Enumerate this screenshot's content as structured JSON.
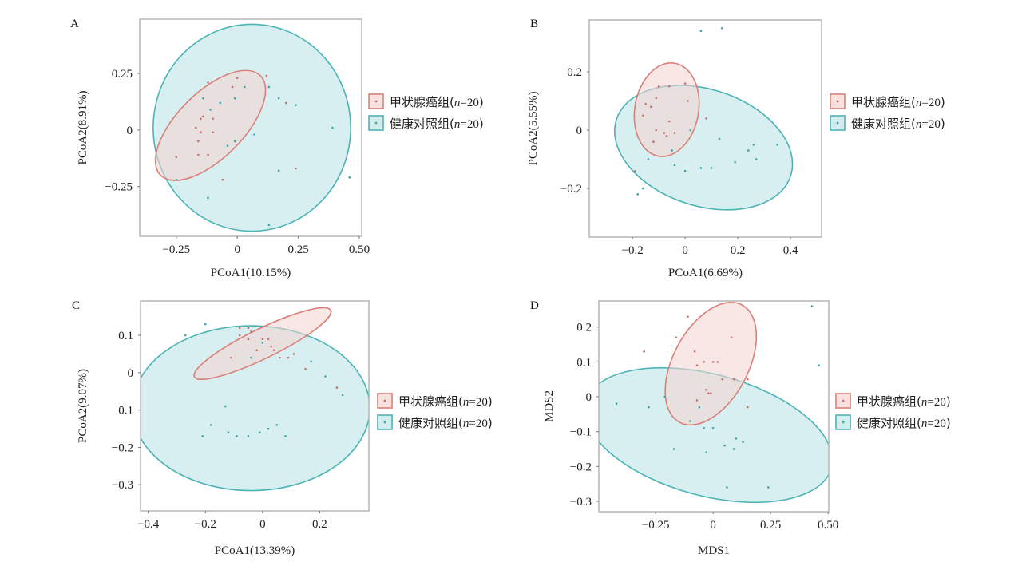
{
  "legend": {
    "groups": [
      {
        "name": "甲状腺癌组",
        "n_label": "n",
        "n_value": "=20",
        "open": "(",
        "close": ")",
        "color_key": "cancer"
      },
      {
        "name": "健康对照组",
        "n_label": "n",
        "n_value": "=20",
        "open": "(",
        "close": ")",
        "color_key": "control"
      }
    ]
  },
  "colors": {
    "cancer_stroke": "#d9807a",
    "cancer_fill": "#f4d3d1",
    "cancer_point": "#c9706a",
    "control_stroke": "#4db3b5",
    "control_fill": "#b7e1e4",
    "control_point": "#3aa6a8",
    "frame": "#b5b5b5"
  },
  "chart_data": [
    {
      "panel": "A",
      "type": "scatter",
      "xlabel": "PCoA1(10.15%)",
      "ylabel": "PCoA2(8.91%)",
      "xlim": [
        -0.4,
        0.51
      ],
      "ylim": [
        -0.47,
        0.49
      ],
      "xticks": [
        -0.25,
        0,
        0.25,
        0.5
      ],
      "xtick_labels": [
        "−0.25",
        "0",
        "0.25",
        "0.50"
      ],
      "yticks": [
        -0.25,
        0,
        0.25
      ],
      "ytick_labels": [
        "−0.25",
        "0",
        "0.25"
      ],
      "ellipses": [
        {
          "group": "control",
          "cx": 0.06,
          "cy": 0.01,
          "rx": 0.42,
          "ry": 0.44,
          "angle": 0
        },
        {
          "group": "cancer",
          "cx": -0.11,
          "cy": 0.02,
          "rx": 0.3,
          "ry": 0.14,
          "angle": 45
        }
      ],
      "series": [
        {
          "group": "cancer",
          "points": [
            [
              -0.25,
              -0.12
            ],
            [
              -0.12,
              0.21
            ],
            [
              -0.02,
              0.19
            ],
            [
              0.0,
              0.23
            ],
            [
              0.12,
              0.24
            ],
            [
              0.2,
              0.12
            ],
            [
              -0.14,
              0.06
            ],
            [
              -0.15,
              0.05
            ],
            [
              -0.1,
              0.05
            ],
            [
              -0.17,
              0.01
            ],
            [
              -0.15,
              -0.01
            ],
            [
              -0.1,
              -0.01
            ],
            [
              -0.16,
              -0.05
            ],
            [
              -0.16,
              -0.11
            ],
            [
              -0.12,
              -0.11
            ],
            [
              -0.06,
              -0.22
            ],
            [
              0.24,
              -0.17
            ]
          ]
        },
        {
          "group": "control",
          "points": [
            [
              0.03,
              0.19
            ],
            [
              0.13,
              0.19
            ],
            [
              -0.14,
              0.14
            ],
            [
              -0.07,
              0.12
            ],
            [
              -0.01,
              0.14
            ],
            [
              0.17,
              0.14
            ],
            [
              0.24,
              0.11
            ],
            [
              -0.11,
              0.09
            ],
            [
              -0.01,
              -0.05
            ],
            [
              0.07,
              -0.02
            ],
            [
              -0.04,
              -0.07
            ],
            [
              0.39,
              0.01
            ],
            [
              0.17,
              -0.18
            ],
            [
              0.46,
              -0.21
            ],
            [
              -0.25,
              -0.22
            ],
            [
              -0.12,
              -0.3
            ],
            [
              0.13,
              -0.42
            ]
          ]
        }
      ]
    },
    {
      "panel": "B",
      "type": "scatter",
      "xlabel": "PCoA1(6.69%)",
      "ylabel": "PCoA2(5.55%)",
      "xlim": [
        -0.364,
        0.518
      ],
      "ylim": [
        -0.367,
        0.378
      ],
      "xticks": [
        -0.2,
        0,
        0.2,
        0.4
      ],
      "xtick_labels": [
        "−0.2",
        "0",
        "0.2",
        "0.4"
      ],
      "yticks": [
        -0.2,
        0,
        0.2
      ],
      "ytick_labels": [
        "−0.2",
        "0",
        "0.2"
      ],
      "ellipses": [
        {
          "group": "control",
          "cx": 0.07,
          "cy": -0.06,
          "rx": 0.33,
          "ry": 0.21,
          "angle": -18
        },
        {
          "group": "cancer",
          "cx": -0.07,
          "cy": 0.07,
          "rx": 0.115,
          "ry": 0.17,
          "angle": -10
        }
      ],
      "series": [
        {
          "group": "cancer",
          "points": [
            [
              -0.1,
              0.15
            ],
            [
              -0.06,
              0.15
            ],
            [
              0.0,
              0.16
            ],
            [
              -0.11,
              0.11
            ],
            [
              0.01,
              0.1
            ],
            [
              -0.15,
              0.09
            ],
            [
              -0.13,
              0.08
            ],
            [
              -0.16,
              0.05
            ],
            [
              0.08,
              0.04
            ],
            [
              -0.06,
              0.03
            ],
            [
              -0.11,
              0.0
            ],
            [
              -0.08,
              -0.01
            ],
            [
              -0.04,
              -0.01
            ],
            [
              -0.07,
              -0.02
            ],
            [
              -0.12,
              -0.04
            ],
            [
              -0.19,
              -0.14
            ]
          ]
        },
        {
          "group": "control",
          "points": [
            [
              0.06,
              0.34
            ],
            [
              0.14,
              0.35
            ],
            [
              0.02,
              0.0
            ],
            [
              -0.05,
              -0.07
            ],
            [
              -0.14,
              -0.1
            ],
            [
              -0.04,
              -0.12
            ],
            [
              0.13,
              -0.03
            ],
            [
              0.24,
              -0.07
            ],
            [
              0.26,
              -0.05
            ],
            [
              0.35,
              -0.05
            ],
            [
              0.27,
              -0.1
            ],
            [
              0.19,
              -0.11
            ],
            [
              0.0,
              -0.14
            ],
            [
              0.06,
              -0.13
            ],
            [
              0.1,
              -0.13
            ],
            [
              -0.16,
              -0.2
            ],
            [
              -0.18,
              -0.22
            ]
          ]
        }
      ]
    },
    {
      "panel": "C",
      "type": "scatter",
      "xlabel": "PCoA1(13.39%)",
      "ylabel": "PCoA2(9.07%)",
      "xlim": [
        -0.427,
        0.372
      ],
      "ylim": [
        -0.37,
        0.192
      ],
      "xticks": [
        -0.4,
        -0.2,
        0,
        0.2
      ],
      "xtick_labels": [
        "−0.4",
        "−0.2",
        "0",
        "0.2"
      ],
      "yticks": [
        -0.3,
        -0.2,
        -0.1,
        0,
        0.1
      ],
      "ytick_labels": [
        "−0.3",
        "−0.2",
        "−0.1",
        "0",
        "0.1"
      ],
      "ellipses": [
        {
          "group": "control",
          "cx": -0.04,
          "cy": -0.095,
          "rx": 0.36,
          "ry": 0.25,
          "angle": 0
        },
        {
          "group": "cancer",
          "cx": 0.0,
          "cy": 0.078,
          "rx": 0.23,
          "ry": 0.045,
          "angle": 26
        }
      ],
      "series": [
        {
          "group": "cancer",
          "points": [
            [
              -0.08,
              0.12
            ],
            [
              -0.05,
              0.12
            ],
            [
              -0.04,
              0.11
            ],
            [
              -0.08,
              0.1
            ],
            [
              -0.05,
              0.09
            ],
            [
              0.0,
              0.09
            ],
            [
              0.02,
              0.09
            ],
            [
              0.03,
              0.07
            ],
            [
              -0.02,
              0.06
            ],
            [
              0.04,
              0.06
            ],
            [
              0.06,
              0.04
            ],
            [
              0.09,
              0.04
            ],
            [
              0.11,
              0.05
            ],
            [
              0.15,
              0.01
            ],
            [
              -0.11,
              0.04
            ],
            [
              0.26,
              -0.04
            ]
          ]
        },
        {
          "group": "control",
          "points": [
            [
              -0.27,
              0.1
            ],
            [
              -0.2,
              0.13
            ],
            [
              0.0,
              0.08
            ],
            [
              -0.04,
              0.04
            ],
            [
              0.17,
              0.03
            ],
            [
              0.22,
              -0.01
            ],
            [
              0.28,
              -0.06
            ],
            [
              -0.13,
              -0.09
            ],
            [
              -0.18,
              -0.14
            ],
            [
              -0.21,
              -0.17
            ],
            [
              -0.12,
              -0.16
            ],
            [
              -0.09,
              -0.17
            ],
            [
              -0.05,
              -0.17
            ],
            [
              -0.01,
              -0.16
            ],
            [
              0.02,
              -0.15
            ],
            [
              0.05,
              -0.14
            ],
            [
              0.08,
              -0.17
            ]
          ]
        }
      ]
    },
    {
      "panel": "D",
      "type": "scatter",
      "xlabel": "MDS1",
      "ylabel": "MDS2",
      "xlim": [
        -0.497,
        0.503
      ],
      "ylim": [
        -0.33,
        0.275
      ],
      "xticks": [
        -0.25,
        0,
        0.25,
        0.5
      ],
      "xtick_labels": [
        "−0.25",
        "0",
        "0.25",
        "0.50"
      ],
      "yticks": [
        -0.3,
        -0.2,
        -0.1,
        0,
        0.1,
        0.2
      ],
      "ytick_labels": [
        "−0.3",
        "−0.2",
        "−0.1",
        "0",
        "0.1",
        "0.2"
      ],
      "ellipses": [
        {
          "group": "control",
          "cx": -0.02,
          "cy": -0.11,
          "rx": 0.44,
          "ry": 0.21,
          "angle": -15
        },
        {
          "group": "cancer",
          "cx": -0.01,
          "cy": 0.095,
          "rx": 0.13,
          "ry": 0.23,
          "angle": -28
        }
      ],
      "series": [
        {
          "group": "cancer",
          "points": [
            [
              -0.11,
              0.23
            ],
            [
              -0.16,
              0.17
            ],
            [
              0.08,
              0.17
            ],
            [
              -0.3,
              0.13
            ],
            [
              -0.08,
              0.13
            ],
            [
              -0.04,
              0.1
            ],
            [
              0.0,
              0.1
            ],
            [
              -0.07,
              0.09
            ],
            [
              0.02,
              0.1
            ],
            [
              0.04,
              0.05
            ],
            [
              0.09,
              0.05
            ],
            [
              0.15,
              0.05
            ],
            [
              -0.03,
              0.02
            ],
            [
              -0.02,
              0.01
            ],
            [
              -0.01,
              0.01
            ],
            [
              -0.07,
              -0.01
            ],
            [
              0.15,
              -0.03
            ]
          ]
        },
        {
          "group": "control",
          "points": [
            [
              0.43,
              0.26
            ],
            [
              0.46,
              0.09
            ],
            [
              -0.42,
              -0.02
            ],
            [
              -0.21,
              0.0
            ],
            [
              -0.28,
              -0.03
            ],
            [
              -0.06,
              -0.03
            ],
            [
              -0.1,
              -0.07
            ],
            [
              -0.04,
              -0.09
            ],
            [
              0.0,
              -0.09
            ],
            [
              0.1,
              -0.12
            ],
            [
              0.13,
              -0.13
            ],
            [
              0.05,
              -0.14
            ],
            [
              0.09,
              -0.15
            ],
            [
              -0.17,
              -0.15
            ],
            [
              -0.03,
              -0.16
            ],
            [
              0.06,
              -0.26
            ],
            [
              0.24,
              -0.26
            ]
          ]
        }
      ]
    }
  ]
}
